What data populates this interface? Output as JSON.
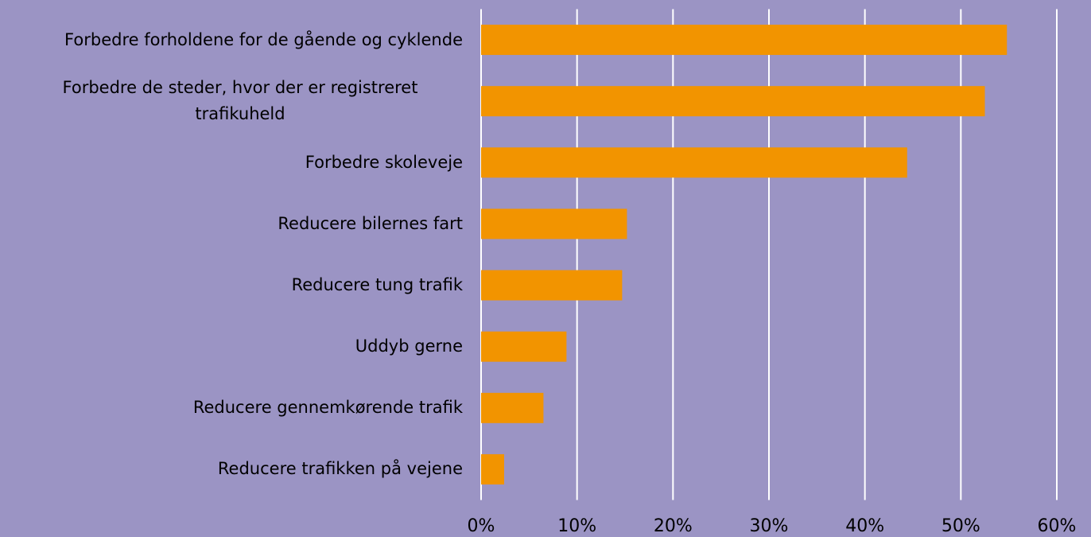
{
  "chart_data": {
    "type": "bar",
    "orientation": "horizontal",
    "categories": [
      "Forbedre forholdene for de gående og cyklende",
      "Forbedre de steder, hvor der er registreret trafikuheld",
      "Forbedre skoleveje",
      "Reducere bilernes fart",
      "Reducere tung trafik",
      "Uddyb gerne",
      "Reducere gennemkørende trafik",
      "Reducere trafikken på vejene"
    ],
    "values": [
      54.8,
      52.5,
      44.4,
      15.2,
      14.7,
      8.9,
      6.5,
      2.4
    ],
    "color": "#f29400",
    "xlim": [
      0,
      60
    ],
    "xticks": [
      {
        "value": 0,
        "label": "0%"
      },
      {
        "value": 10,
        "label": "10%"
      },
      {
        "value": 20,
        "label": "20%"
      },
      {
        "value": 30,
        "label": "30%"
      },
      {
        "value": 40,
        "label": "40%"
      },
      {
        "value": 50,
        "label": "50%"
      },
      {
        "value": 60,
        "label": "60%"
      }
    ],
    "grid": true
  }
}
